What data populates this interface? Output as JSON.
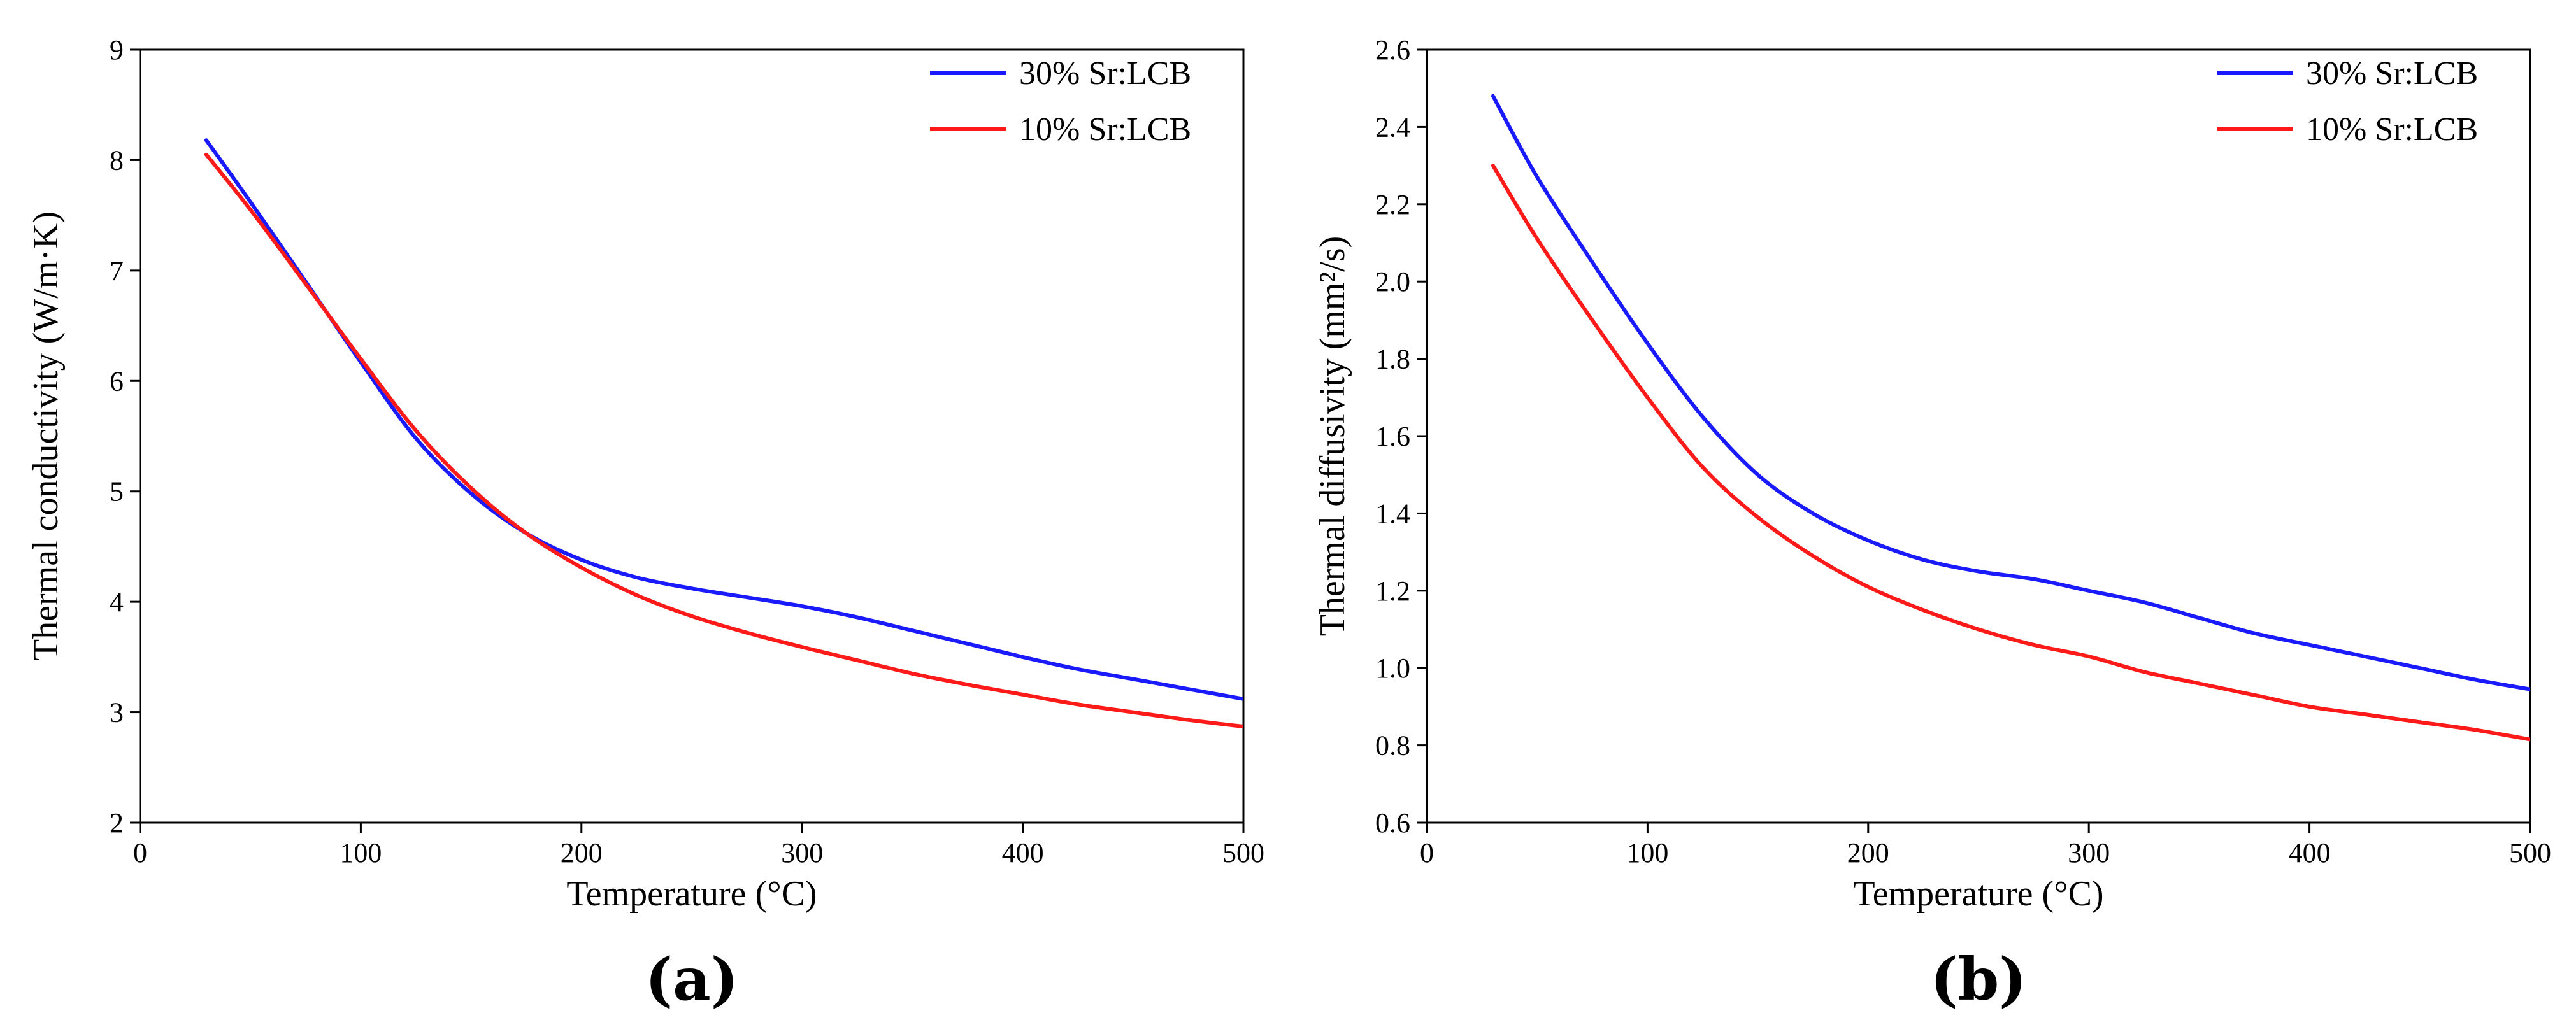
{
  "chart_data": [
    {
      "type": "line",
      "panel_label": "(a)",
      "xlabel": "Temperature (°C)",
      "ylabel": "Thermal conductivity (W/m·K)",
      "xlim": [
        0,
        500
      ],
      "ylim": [
        2,
        9
      ],
      "xticks": [
        0,
        100,
        200,
        300,
        400,
        500
      ],
      "yticks": [
        2,
        3,
        4,
        5,
        6,
        7,
        8,
        9
      ],
      "grid": false,
      "legend_position": "top-right",
      "series": [
        {
          "name": "30% Sr:LCB",
          "color": "#1a1aff",
          "x": [
            30,
            50,
            75,
            100,
            125,
            150,
            175,
            200,
            225,
            250,
            275,
            300,
            325,
            350,
            375,
            400,
            425,
            450,
            475,
            500
          ],
          "y": [
            8.18,
            7.62,
            6.9,
            6.17,
            5.48,
            4.98,
            4.62,
            4.38,
            4.22,
            4.12,
            4.04,
            3.96,
            3.86,
            3.74,
            3.62,
            3.5,
            3.39,
            3.3,
            3.21,
            3.12
          ]
        },
        {
          "name": "10% Sr:LCB",
          "color": "#ff1a1a",
          "x": [
            30,
            50,
            75,
            100,
            125,
            150,
            175,
            200,
            225,
            250,
            275,
            300,
            325,
            350,
            375,
            400,
            425,
            450,
            475,
            500
          ],
          "y": [
            8.05,
            7.55,
            6.88,
            6.2,
            5.55,
            5.03,
            4.62,
            4.31,
            4.06,
            3.87,
            3.72,
            3.59,
            3.47,
            3.35,
            3.25,
            3.16,
            3.07,
            3.0,
            2.93,
            2.87
          ]
        }
      ]
    },
    {
      "type": "line",
      "panel_label": "(b)",
      "xlabel": "Temperature (°C)",
      "ylabel": "Thermal diffusivity (mm²/s)",
      "xlim": [
        0,
        500
      ],
      "ylim": [
        0.6,
        2.6
      ],
      "xticks": [
        0,
        100,
        200,
        300,
        400,
        500
      ],
      "yticks": [
        0.6,
        0.8,
        1.0,
        1.2,
        1.4,
        1.6,
        1.8,
        2.0,
        2.2,
        2.4,
        2.6
      ],
      "ytick_labels": [
        "0.6",
        "0.8",
        "1.0",
        "1.2",
        "1.4",
        "1.6",
        "1.8",
        "2.0",
        "2.2",
        "2.4",
        "2.6"
      ],
      "grid": false,
      "legend_position": "top-right",
      "series": [
        {
          "name": "30% Sr:LCB",
          "color": "#1a1aff",
          "x": [
            30,
            50,
            75,
            100,
            125,
            150,
            175,
            200,
            225,
            250,
            275,
            300,
            325,
            350,
            375,
            400,
            425,
            450,
            475,
            500
          ],
          "y": [
            2.48,
            2.27,
            2.05,
            1.84,
            1.65,
            1.5,
            1.4,
            1.33,
            1.28,
            1.25,
            1.23,
            1.2,
            1.17,
            1.13,
            1.09,
            1.06,
            1.03,
            1.0,
            0.97,
            0.945
          ]
        },
        {
          "name": "10% Sr:LCB",
          "color": "#ff1a1a",
          "x": [
            30,
            50,
            75,
            100,
            125,
            150,
            175,
            200,
            225,
            250,
            275,
            300,
            325,
            350,
            375,
            400,
            425,
            450,
            475,
            500
          ],
          "y": [
            2.3,
            2.11,
            1.9,
            1.7,
            1.52,
            1.39,
            1.29,
            1.21,
            1.15,
            1.1,
            1.06,
            1.03,
            0.99,
            0.96,
            0.93,
            0.9,
            0.88,
            0.86,
            0.84,
            0.815
          ]
        }
      ]
    }
  ]
}
